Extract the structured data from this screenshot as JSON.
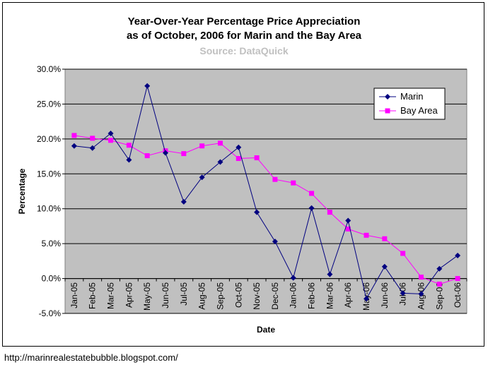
{
  "chart_data": {
    "type": "line",
    "title": "Year-Over-Year Percentage Price Appreciation",
    "subtitle": "as of October, 2006 for Marin and the Bay Area",
    "source": "Source: DataQuick",
    "xlabel": "Date",
    "ylabel": "Percentage",
    "ylim": [
      -5,
      30
    ],
    "yticks": [
      -5,
      0,
      5,
      10,
      15,
      20,
      25,
      30
    ],
    "ytick_labels": [
      "-5.0%",
      "0.0%",
      "5.0%",
      "10.0%",
      "15.0%",
      "20.0%",
      "25.0%",
      "30.0%"
    ],
    "grid": true,
    "legend_position": "top-right",
    "categories": [
      "Jan-05",
      "Feb-05",
      "Mar-05",
      "Apr-05",
      "May-05",
      "Jun-05",
      "Jul-05",
      "Aug-05",
      "Sep-05",
      "Oct-05",
      "Nov-05",
      "Dec-05",
      "Jan-06",
      "Feb-06",
      "Mar-06",
      "Apr-06",
      "May-06",
      "Jun-06",
      "Jul-06",
      "Aug-06",
      "Sep-06",
      "Oct-06"
    ],
    "series": [
      {
        "name": "Marin",
        "color": "#000080",
        "marker": "diamond",
        "values": [
          19.0,
          18.7,
          20.8,
          17.0,
          27.6,
          18.0,
          11.0,
          14.5,
          16.7,
          18.8,
          9.5,
          5.3,
          0.1,
          10.1,
          0.6,
          8.3,
          -2.9,
          1.7,
          -2.1,
          -2.2,
          1.4,
          3.3
        ]
      },
      {
        "name": "Bay Area",
        "color": "#ff00ff",
        "marker": "square",
        "values": [
          20.5,
          20.1,
          19.8,
          19.1,
          17.6,
          18.3,
          17.9,
          19.0,
          19.4,
          17.2,
          17.3,
          14.2,
          13.7,
          12.2,
          9.5,
          7.1,
          6.2,
          5.7,
          3.6,
          0.2,
          -0.8,
          0.0
        ]
      }
    ]
  },
  "colors": {
    "plot_background": "#c0c0c0",
    "source_text": "#c0c0c0"
  },
  "footer": {
    "url": "http://marinrealestatebubble.blogspot.com/"
  }
}
